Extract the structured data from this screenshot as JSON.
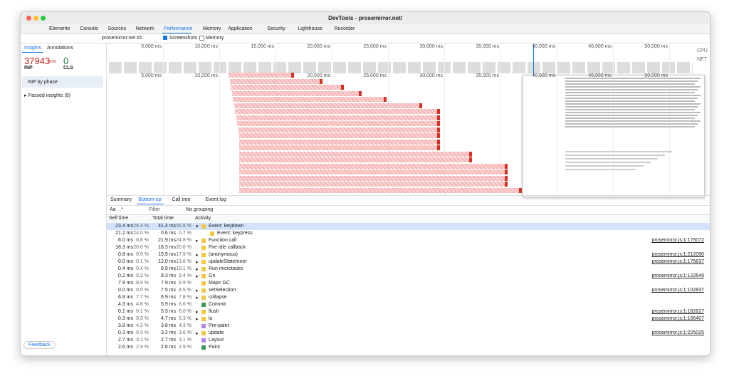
{
  "window": {
    "title": "DevTools - prosemirror.net/"
  },
  "tabs": [
    "Elements",
    "Console",
    "Sources",
    "Network",
    "Performance",
    "Memory",
    "Application",
    "Security",
    "Lighthouse",
    "Recorder"
  ],
  "toolbar": {
    "recording": "prosemirror.net #1",
    "screenshots": "Screenshots",
    "memory": "Memory"
  },
  "sidebar": {
    "tabs": [
      "Insights",
      "Annotations"
    ],
    "inp_value": "37943",
    "inp_unit": "ms",
    "inp_label": "INP",
    "cls_value": "0",
    "cls_label": "CLS",
    "inp_by_phase": "INP by phase",
    "passed": "Passed insights (9)",
    "feedback": "Feedback"
  },
  "timeline": {
    "ticks": [
      "5,000 ms",
      "10,000 ms",
      "15,000 ms",
      "20,000 ms",
      "25,000 ms",
      "30,000 ms",
      "35,000 ms",
      "40,000 ms",
      "45,000 ms",
      "50,000 ms"
    ],
    "cpu": "CPU",
    "net": "NET"
  },
  "bottom": {
    "tabs": [
      "Summary",
      "Bottom-up",
      "Call tree",
      "Event log"
    ],
    "match_case": "Aa",
    "regex": ".*",
    "filter": "Filter",
    "grouping": "No grouping",
    "columns": [
      "Self time",
      "Total time",
      "Activity"
    ],
    "rows": [
      [
        "23.4 ms",
        "26.4 %",
        "41.4 ms",
        "46.8 %",
        "Event: keydown",
        ""
      ],
      [
        "21.2 ms",
        "24.0 %",
        "0.6 ms",
        "0.7 %",
        "Event: keypress",
        ""
      ],
      [
        "6.0 ms",
        "6.8 %",
        "21.9 ms",
        "24.8 %",
        "Function call",
        "prosemirror.js:1:175072"
      ],
      [
        "18.3 ms",
        "20.6 %",
        "18.3 ms",
        "20.6 %",
        "Fire idle callback",
        ""
      ],
      [
        "0.8 ms",
        "0.9 %",
        "15.9 ms",
        "17.9 %",
        "(anonymous)",
        "prosemirror.js:1:212090"
      ],
      [
        "0.0 ms",
        "0.1 %",
        "12.0 ms",
        "13.6 %",
        "updateStateInner",
        "prosemirror.js:1:175837"
      ],
      [
        "0.4 ms",
        "0.4 %",
        "8.9 ms",
        "10.1 %",
        "Run microtasks",
        ""
      ],
      [
        "0.2 ms",
        "0.2 %",
        "8.3 ms",
        "9.4 %",
        "Gn",
        "prosemirror.js:1:122649"
      ],
      [
        "7.9 ms",
        "8.9 %",
        "7.9 ms",
        "8.9 %",
        "Major GC",
        ""
      ],
      [
        "0.0 ms",
        "0.0 %",
        "7.5 ms",
        "8.5 %",
        "setSelection",
        "prosemirror.js:1:102837"
      ],
      [
        "6.8 ms",
        "7.7 %",
        "6.9 ms",
        "7.8 %",
        "collapse",
        ""
      ],
      [
        "4.3 ms",
        "4.8 %",
        "5.9 ms",
        "6.6 %",
        "Commit",
        ""
      ],
      [
        "0.1 ms",
        "0.1 %",
        "5.3 ms",
        "6.0 %",
        "flush",
        "prosemirror.js:1:162627"
      ],
      [
        "0.3 ms",
        "0.3 %",
        "4.7 ms",
        "5.3 %",
        "lo",
        "prosemirror.js:1:166407"
      ],
      [
        "3.8 ms",
        "4.3 %",
        "3.8 ms",
        "4.3 %",
        "Pre-paint",
        ""
      ],
      [
        "0.3 ms",
        "0.3 %",
        "3.2 ms",
        "3.6 %",
        "update",
        "prosemirror.js:1:225025"
      ],
      [
        "2.7 ms",
        "3.1 %",
        "2.7 ms",
        "3.1 %",
        "Layout",
        ""
      ],
      [
        "2.6 ms",
        "2.9 %",
        "2.6 ms",
        "2.9 %",
        "Paint",
        ""
      ]
    ]
  }
}
